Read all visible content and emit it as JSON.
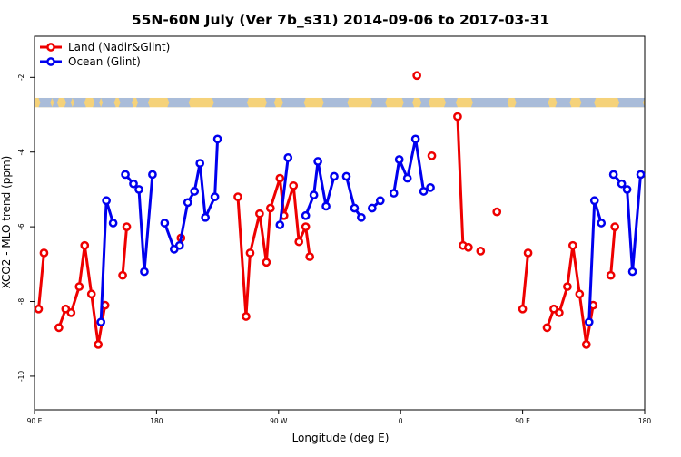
{
  "chart_data": {
    "type": "line",
    "title": "55N-60N July (Ver 7b_s31)   2014-09-06 to 2017-03-31",
    "xlabel": "Longitude (deg E)",
    "ylabel": "XCO2 - MLO trend (ppm)",
    "xlim": [
      90,
      540
    ],
    "ylim": [
      -10.9,
      -0.9
    ],
    "x_ticks": [
      {
        "value": 90,
        "label": "90 E"
      },
      {
        "value": 180,
        "label": "180"
      },
      {
        "value": 270,
        "label": "90 W"
      },
      {
        "value": 360,
        "label": "0"
      },
      {
        "value": 450,
        "label": "90 E"
      },
      {
        "value": 540,
        "label": "180"
      }
    ],
    "y_ticks": [
      {
        "value": -2,
        "label": "-2"
      },
      {
        "value": -4,
        "label": "-4"
      },
      {
        "value": -6,
        "label": "-6"
      },
      {
        "value": -8,
        "label": "-8"
      },
      {
        "value": -10,
        "label": "-10"
      }
    ],
    "grid": false,
    "legend_position": "top-left",
    "map_strip": {
      "y_top": -2.55,
      "y_bottom": -2.8,
      "land_color": "#f5d27a",
      "ocean_color": "#a9bcd9"
    },
    "series": [
      {
        "name": "Land (Nadir&Glint)",
        "color": "#ee0000",
        "segments": [
          [
            [
              93,
              -8.2
            ],
            [
              97,
              -6.7
            ]
          ],
          [
            [
              108,
              -8.7
            ],
            [
              113,
              -8.2
            ],
            [
              117,
              -8.3
            ],
            [
              123,
              -7.6
            ],
            [
              127,
              -6.5
            ],
            [
              132,
              -7.8
            ],
            [
              137,
              -9.15
            ],
            [
              142,
              -8.1
            ]
          ],
          [
            [
              155,
              -7.3
            ],
            [
              158,
              -6.0
            ]
          ],
          [
            [
              198,
              -6.3
            ]
          ],
          [
            [
              240,
              -5.2
            ],
            [
              246,
              -8.4
            ],
            [
              249,
              -6.7
            ],
            [
              256,
              -5.65
            ],
            [
              261,
              -6.95
            ],
            [
              264,
              -5.5
            ],
            [
              271,
              -4.7
            ],
            [
              274,
              -5.7
            ],
            [
              281,
              -4.9
            ],
            [
              285,
              -6.4
            ],
            [
              290,
              -6.0
            ],
            [
              293,
              -6.8
            ]
          ],
          [
            [
              372,
              -1.95
            ]
          ],
          [
            [
              383,
              -4.1
            ]
          ],
          [
            [
              402,
              -3.05
            ],
            [
              406,
              -6.5
            ],
            [
              410,
              -6.55
            ]
          ],
          [
            [
              419,
              -6.65
            ]
          ],
          [
            [
              431,
              -5.6
            ]
          ],
          [
            [
              450,
              -8.2
            ],
            [
              454,
              -6.7
            ]
          ],
          [
            [
              468,
              -8.7
            ],
            [
              473,
              -8.2
            ],
            [
              477,
              -8.3
            ],
            [
              483,
              -7.6
            ],
            [
              487,
              -6.5
            ],
            [
              492,
              -7.8
            ],
            [
              497,
              -9.15
            ],
            [
              502,
              -8.1
            ]
          ],
          [
            [
              515,
              -7.3
            ],
            [
              518,
              -6.0
            ]
          ]
        ]
      },
      {
        "name": "Ocean (Glint)",
        "color": "#0000ee",
        "segments": [
          [
            [
              139,
              -8.55
            ],
            [
              143,
              -5.3
            ],
            [
              148,
              -5.9
            ]
          ],
          [
            [
              157,
              -4.6
            ],
            [
              163,
              -4.85
            ],
            [
              167,
              -5.0
            ],
            [
              171,
              -7.2
            ],
            [
              177,
              -4.6
            ]
          ],
          [
            [
              186,
              -5.9
            ],
            [
              193,
              -6.6
            ],
            [
              197,
              -6.5
            ],
            [
              203,
              -5.35
            ],
            [
              208,
              -5.05
            ],
            [
              212,
              -4.3
            ],
            [
              216,
              -5.75
            ],
            [
              223,
              -5.2
            ],
            [
              225,
              -3.65
            ]
          ],
          [
            [
              271,
              -5.95
            ],
            [
              277,
              -4.15
            ]
          ],
          [
            [
              290,
              -5.7
            ],
            [
              296,
              -5.15
            ],
            [
              299,
              -4.25
            ],
            [
              305,
              -5.45
            ],
            [
              311,
              -4.65
            ]
          ],
          [
            [
              320,
              -4.65
            ],
            [
              326,
              -5.5
            ],
            [
              331,
              -5.75
            ]
          ],
          [
            [
              339,
              -5.5
            ],
            [
              345,
              -5.3
            ]
          ],
          [
            [
              355,
              -5.1
            ],
            [
              359,
              -4.2
            ],
            [
              365,
              -4.7
            ],
            [
              371,
              -3.65
            ],
            [
              377,
              -5.05
            ],
            [
              382,
              -4.95
            ]
          ],
          [
            [
              499,
              -8.55
            ],
            [
              503,
              -5.3
            ],
            [
              508,
              -5.9
            ]
          ],
          [
            [
              517,
              -4.6
            ],
            [
              523,
              -4.85
            ],
            [
              527,
              -5.0
            ],
            [
              531,
              -7.2
            ],
            [
              537,
              -4.6
            ]
          ]
        ]
      }
    ]
  }
}
